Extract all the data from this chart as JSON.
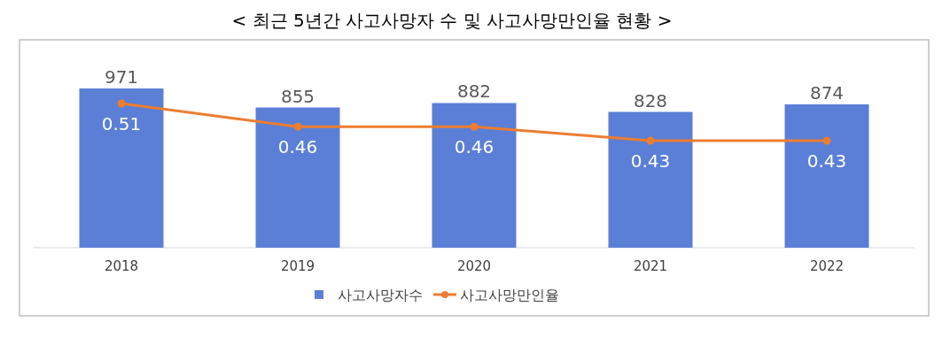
{
  "chart_data": {
    "type": "bar",
    "title": "< 최근 5년간 사고사망자 수 및 사고사망만인율 현황 >",
    "categories": [
      "2018",
      "2019",
      "2020",
      "2021",
      "2022"
    ],
    "series": [
      {
        "name": "사고사망자수",
        "color": "#5b7fd6",
        "values": [
          971,
          855,
          882,
          828,
          874
        ]
      },
      {
        "name": "사고사망만인율",
        "type": "line",
        "axis": "y2",
        "color": "#ed7d31",
        "marker": "circle",
        "values": [
          0.51,
          0.46,
          0.46,
          0.43,
          0.43
        ]
      }
    ],
    "tick_labels": "x",
    "data_labels": true,
    "legend": "bottom"
  }
}
